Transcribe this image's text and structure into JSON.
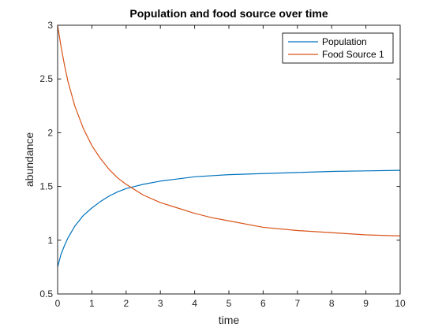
{
  "chart_data": {
    "type": "line",
    "title": "Population and food source over time",
    "xlabel": "time",
    "ylabel": "abundance",
    "xlim": [
      0,
      10
    ],
    "ylim": [
      0.5,
      3
    ],
    "xticks": [
      0,
      1,
      2,
      3,
      4,
      5,
      6,
      7,
      8,
      9,
      10
    ],
    "yticks": [
      0.5,
      1,
      1.5,
      2,
      2.5,
      3
    ],
    "ytick_labels": [
      "0.5",
      "1",
      "1.5",
      "2",
      "2.5",
      "3"
    ],
    "grid": false,
    "legend": "top-right",
    "series": [
      {
        "name": "Population",
        "color": "#0072BD",
        "x": [
          0,
          0.1,
          0.2,
          0.3,
          0.5,
          0.75,
          1,
          1.25,
          1.5,
          1.75,
          2,
          2.25,
          2.5,
          3,
          3.5,
          4,
          4.5,
          5,
          6,
          7,
          8,
          9,
          10
        ],
        "y": [
          0.75,
          0.87,
          0.95,
          1.02,
          1.13,
          1.23,
          1.3,
          1.36,
          1.41,
          1.45,
          1.48,
          1.5,
          1.52,
          1.55,
          1.57,
          1.59,
          1.6,
          1.61,
          1.62,
          1.63,
          1.64,
          1.645,
          1.65
        ]
      },
      {
        "name": "Food Source 1",
        "color": "#D95319",
        "x": [
          0,
          0.1,
          0.2,
          0.3,
          0.5,
          0.75,
          1,
          1.25,
          1.5,
          1.75,
          2,
          2.25,
          2.5,
          3,
          3.5,
          4,
          4.5,
          5,
          6,
          7,
          8,
          9,
          10
        ],
        "y": [
          3.0,
          2.8,
          2.63,
          2.48,
          2.25,
          2.04,
          1.88,
          1.76,
          1.66,
          1.58,
          1.52,
          1.47,
          1.42,
          1.35,
          1.3,
          1.25,
          1.21,
          1.18,
          1.12,
          1.09,
          1.07,
          1.05,
          1.04
        ]
      }
    ]
  }
}
